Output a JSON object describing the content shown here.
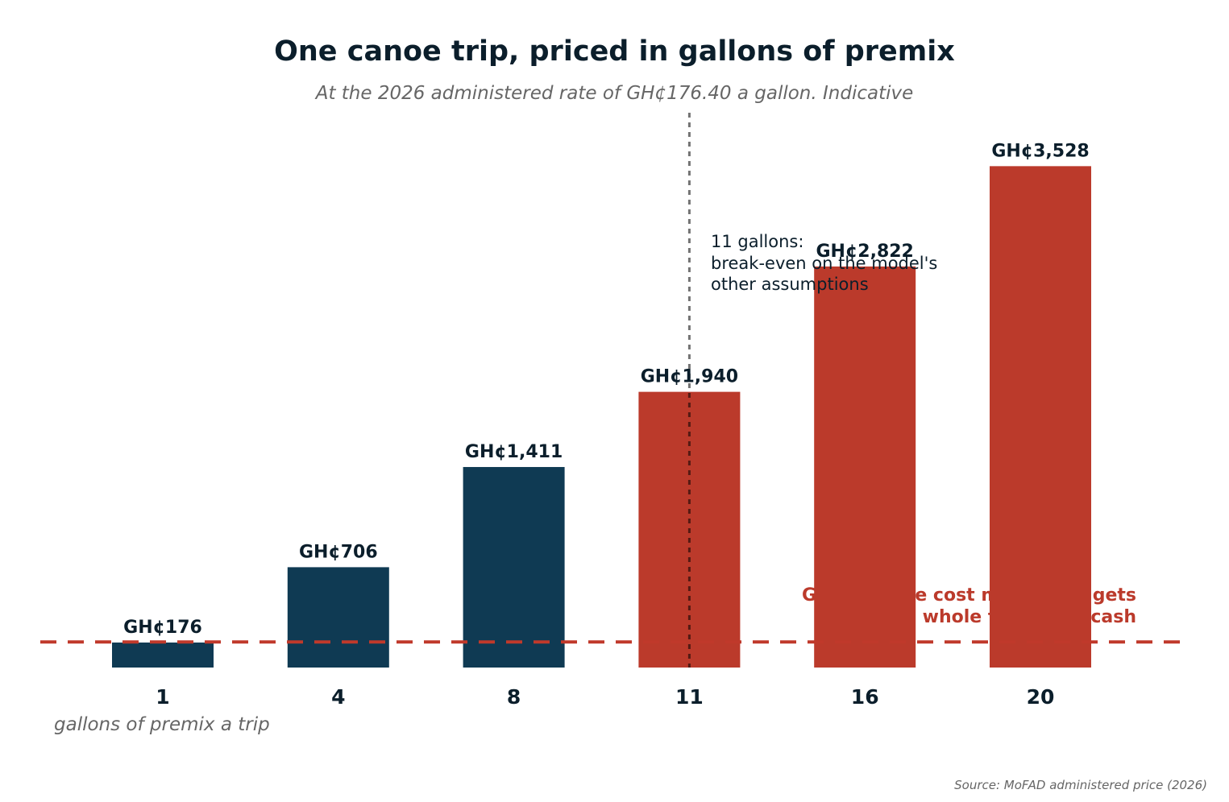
{
  "chart_data": {
    "type": "bar",
    "title": "One canoe trip, priced in gallons of premix",
    "subtitle": "At the 2026 administered rate of GH¢176.40 a gallon. Indicative",
    "xlabel": "gallons of premix a trip",
    "categories": [
      "1",
      "4",
      "8",
      "11",
      "16",
      "20"
    ],
    "values": [
      176,
      706,
      1411,
      1940,
      2822,
      3528
    ],
    "value_labels": [
      "GH¢176",
      "GH¢706",
      "GH¢1,411",
      "GH¢1,940",
      "GH¢2,822",
      "GH¢3,528"
    ],
    "ylim": [
      0,
      3700
    ],
    "bar_colors": [
      "#0f3a53",
      "#0f3a53",
      "#0f3a53",
      "#bb3a2b",
      "#bb3a2b",
      "#bb3a2b"
    ],
    "reference_line": {
      "value": 180,
      "color": "#c0392b",
      "label_line1": "GH¢180: the cost mostly budgets",
      "label_line2": "the whole trip's fuel cash"
    },
    "vertical_marker": {
      "category": "11",
      "text_line1": "11 gallons:",
      "text_line2": "break-even on the model's",
      "text_line3": "other assumptions"
    },
    "grid": false,
    "source": "Source: MoFAD administered price (2026)"
  }
}
